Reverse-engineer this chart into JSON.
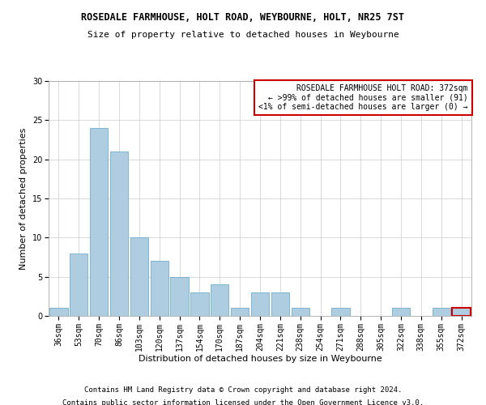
{
  "title": "ROSEDALE FARMHOUSE, HOLT ROAD, WEYBOURNE, HOLT, NR25 7ST",
  "subtitle": "Size of property relative to detached houses in Weybourne",
  "xlabel": "Distribution of detached houses by size in Weybourne",
  "ylabel": "Number of detached properties",
  "categories": [
    "36sqm",
    "53sqm",
    "70sqm",
    "86sqm",
    "103sqm",
    "120sqm",
    "137sqm",
    "154sqm",
    "170sqm",
    "187sqm",
    "204sqm",
    "221sqm",
    "238sqm",
    "254sqm",
    "271sqm",
    "288sqm",
    "305sqm",
    "322sqm",
    "338sqm",
    "355sqm",
    "372sqm"
  ],
  "values": [
    1,
    8,
    24,
    21,
    10,
    7,
    5,
    3,
    4,
    1,
    3,
    3,
    1,
    0,
    1,
    0,
    0,
    1,
    0,
    1,
    1
  ],
  "bar_color": "#aecde1",
  "bar_edge_color": "#5ba3c9",
  "last_bar_edge_color": "#cc0000",
  "ylim": [
    0,
    30
  ],
  "yticks": [
    0,
    5,
    10,
    15,
    20,
    25,
    30
  ],
  "annotation_line1": "ROSEDALE FARMHOUSE HOLT ROAD: 372sqm",
  "annotation_line2": "← >99% of detached houses are smaller (91)",
  "annotation_line3": "<1% of semi-detached houses are larger (0) →",
  "footer_line1": "Contains HM Land Registry data © Crown copyright and database right 2024.",
  "footer_line2": "Contains public sector information licensed under the Open Government Licence v3.0.",
  "title_fontsize": 8.5,
  "subtitle_fontsize": 8,
  "ylabel_fontsize": 8,
  "xlabel_fontsize": 8,
  "tick_fontsize": 7,
  "annotation_fontsize": 7,
  "footer_fontsize": 6.5,
  "background_color": "#ffffff",
  "grid_color": "#cccccc"
}
